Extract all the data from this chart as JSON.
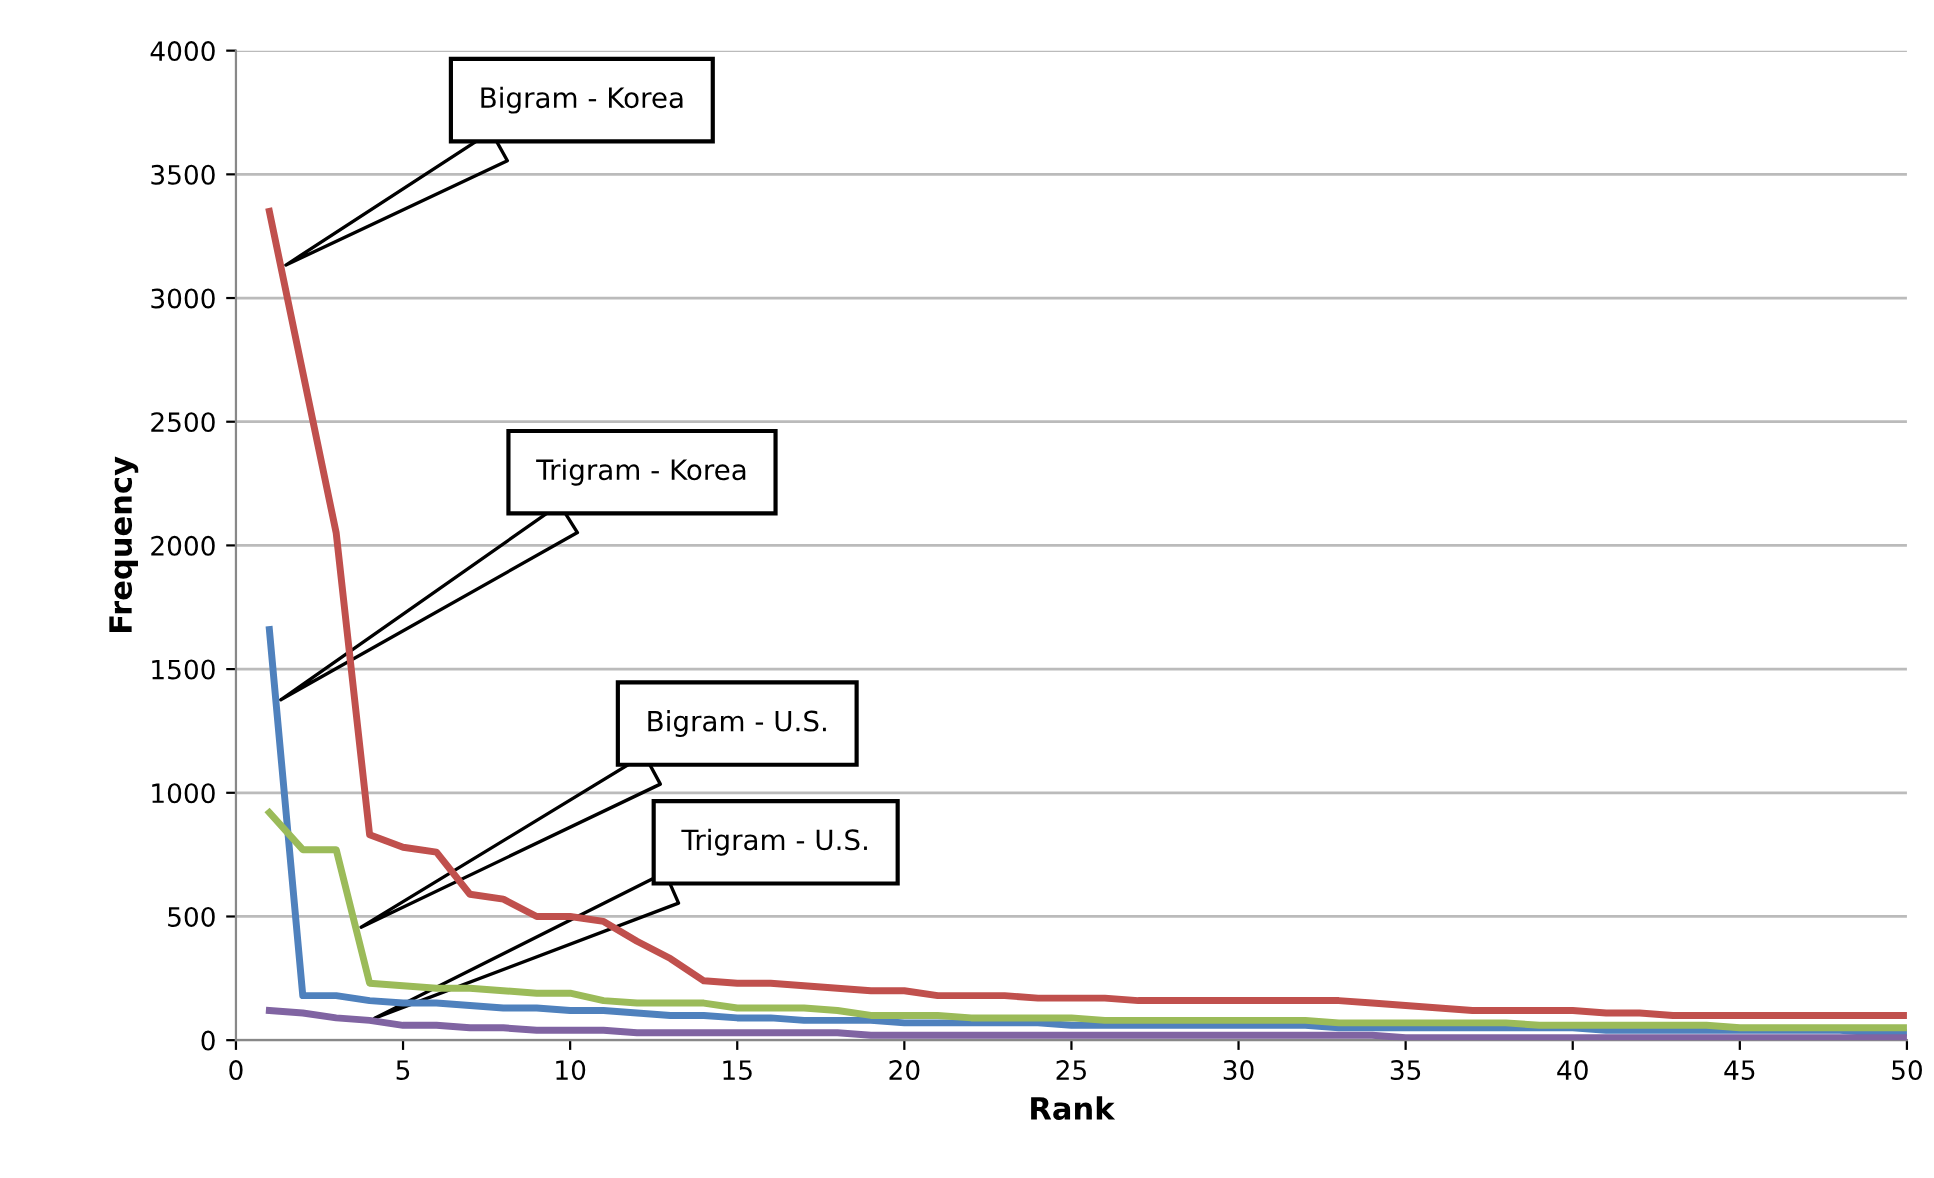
{
  "chart_data": {
    "type": "line",
    "xlabel": "Rank",
    "ylabel": "Frequency",
    "x": [
      1,
      2,
      3,
      4,
      5,
      6,
      7,
      8,
      9,
      10,
      11,
      12,
      13,
      14,
      15,
      16,
      17,
      18,
      19,
      20,
      21,
      22,
      23,
      24,
      25,
      26,
      27,
      28,
      29,
      30,
      31,
      32,
      33,
      34,
      35,
      36,
      37,
      38,
      39,
      40,
      41,
      42,
      43,
      44,
      45,
      46,
      47,
      48,
      49,
      50
    ],
    "series": [
      {
        "color": "#c0504d",
        "values": [
          3350,
          2700,
          2050,
          830,
          780,
          760,
          590,
          570,
          500,
          500,
          480,
          400,
          330,
          240,
          230,
          230,
          220,
          210,
          200,
          200,
          180,
          180,
          180,
          170,
          170,
          170,
          160,
          160,
          160,
          160,
          160,
          160,
          160,
          150,
          140,
          130,
          120,
          120,
          120,
          120,
          110,
          110,
          100,
          100,
          100,
          100,
          100,
          100,
          100,
          100
        ]
      },
      {
        "color": "#4f81bd",
        "values": [
          1660,
          180,
          180,
          160,
          150,
          150,
          140,
          130,
          130,
          120,
          120,
          110,
          100,
          100,
          90,
          90,
          80,
          80,
          80,
          70,
          70,
          70,
          70,
          70,
          60,
          60,
          60,
          60,
          60,
          60,
          60,
          60,
          50,
          50,
          50,
          50,
          50,
          50,
          50,
          50,
          40,
          40,
          40,
          40,
          40,
          40,
          40,
          40,
          30,
          30
        ]
      },
      {
        "color": "#9bbb59",
        "values": [
          920,
          770,
          770,
          230,
          220,
          210,
          210,
          200,
          190,
          190,
          160,
          150,
          150,
          150,
          130,
          130,
          130,
          120,
          100,
          100,
          100,
          90,
          90,
          90,
          90,
          80,
          80,
          80,
          80,
          80,
          80,
          80,
          70,
          70,
          70,
          70,
          70,
          70,
          60,
          60,
          60,
          60,
          60,
          60,
          50,
          50,
          50,
          50,
          50,
          50
        ]
      },
      {
        "color": "#8064a2",
        "values": [
          120,
          110,
          90,
          80,
          60,
          60,
          50,
          50,
          40,
          40,
          40,
          30,
          30,
          30,
          30,
          30,
          30,
          30,
          20,
          20,
          20,
          20,
          20,
          20,
          20,
          20,
          20,
          20,
          20,
          20,
          20,
          20,
          20,
          20,
          10,
          10,
          10,
          10,
          10,
          10,
          10,
          10,
          10,
          10,
          10,
          10,
          10,
          10,
          10,
          10
        ]
      }
    ],
    "xlim": [
      0,
      50
    ],
    "xticks": [
      0,
      5,
      10,
      15,
      20,
      25,
      30,
      35,
      40,
      45,
      50
    ],
    "ylim": [
      0,
      4000
    ],
    "yticks": [
      0,
      500,
      1000,
      1500,
      2000,
      2500,
      3000,
      3500,
      4000
    ],
    "grid": "y",
    "marker": "none",
    "line_style": "solid",
    "annotations": [
      "Bigram - Korea",
      "Trigram - Korea",
      "Bigram - U.S.",
      "Trigram - U.S."
    ]
  }
}
